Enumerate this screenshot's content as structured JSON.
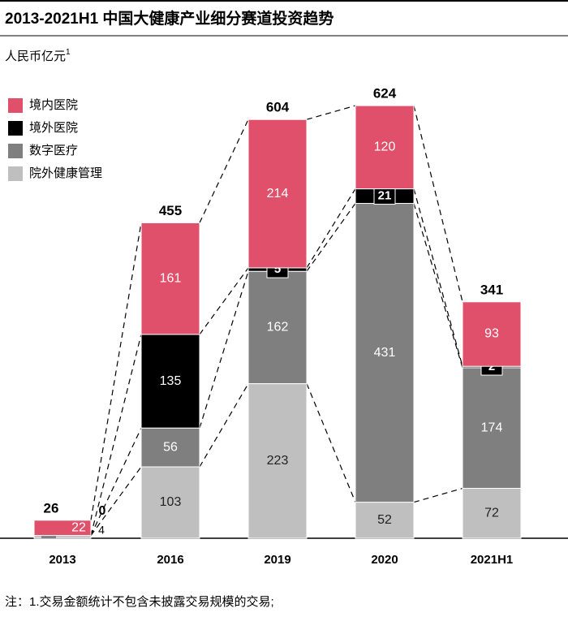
{
  "chart_data": {
    "type": "stacked_bar",
    "title": "2013-2021H1 中国大健康产业细分赛道投资趋势",
    "unit_label": "人民币亿元",
    "unit_note": "1",
    "categories": [
      "2013",
      "2016",
      "2019",
      "2020",
      "2021H1"
    ],
    "series": [
      {
        "name": "境内医院",
        "color": "#e0506a",
        "values": [
          22,
          161,
          214,
          120,
          93
        ]
      },
      {
        "name": "境外医院",
        "color": "#000000",
        "values": [
          0,
          135,
          5,
          21,
          2
        ]
      },
      {
        "name": "数字医疗",
        "color": "#7f7f7f",
        "values": [
          0,
          56,
          162,
          431,
          174
        ]
      },
      {
        "name": "院外健康管理",
        "color": "#bfbfbf",
        "values": [
          4,
          103,
          223,
          52,
          72
        ]
      }
    ],
    "totals": [
      26,
      455,
      604,
      624,
      341
    ],
    "legend": "top-left",
    "footnote": "注：1.交易金额统计不包含未披露交易规模的交易;"
  }
}
